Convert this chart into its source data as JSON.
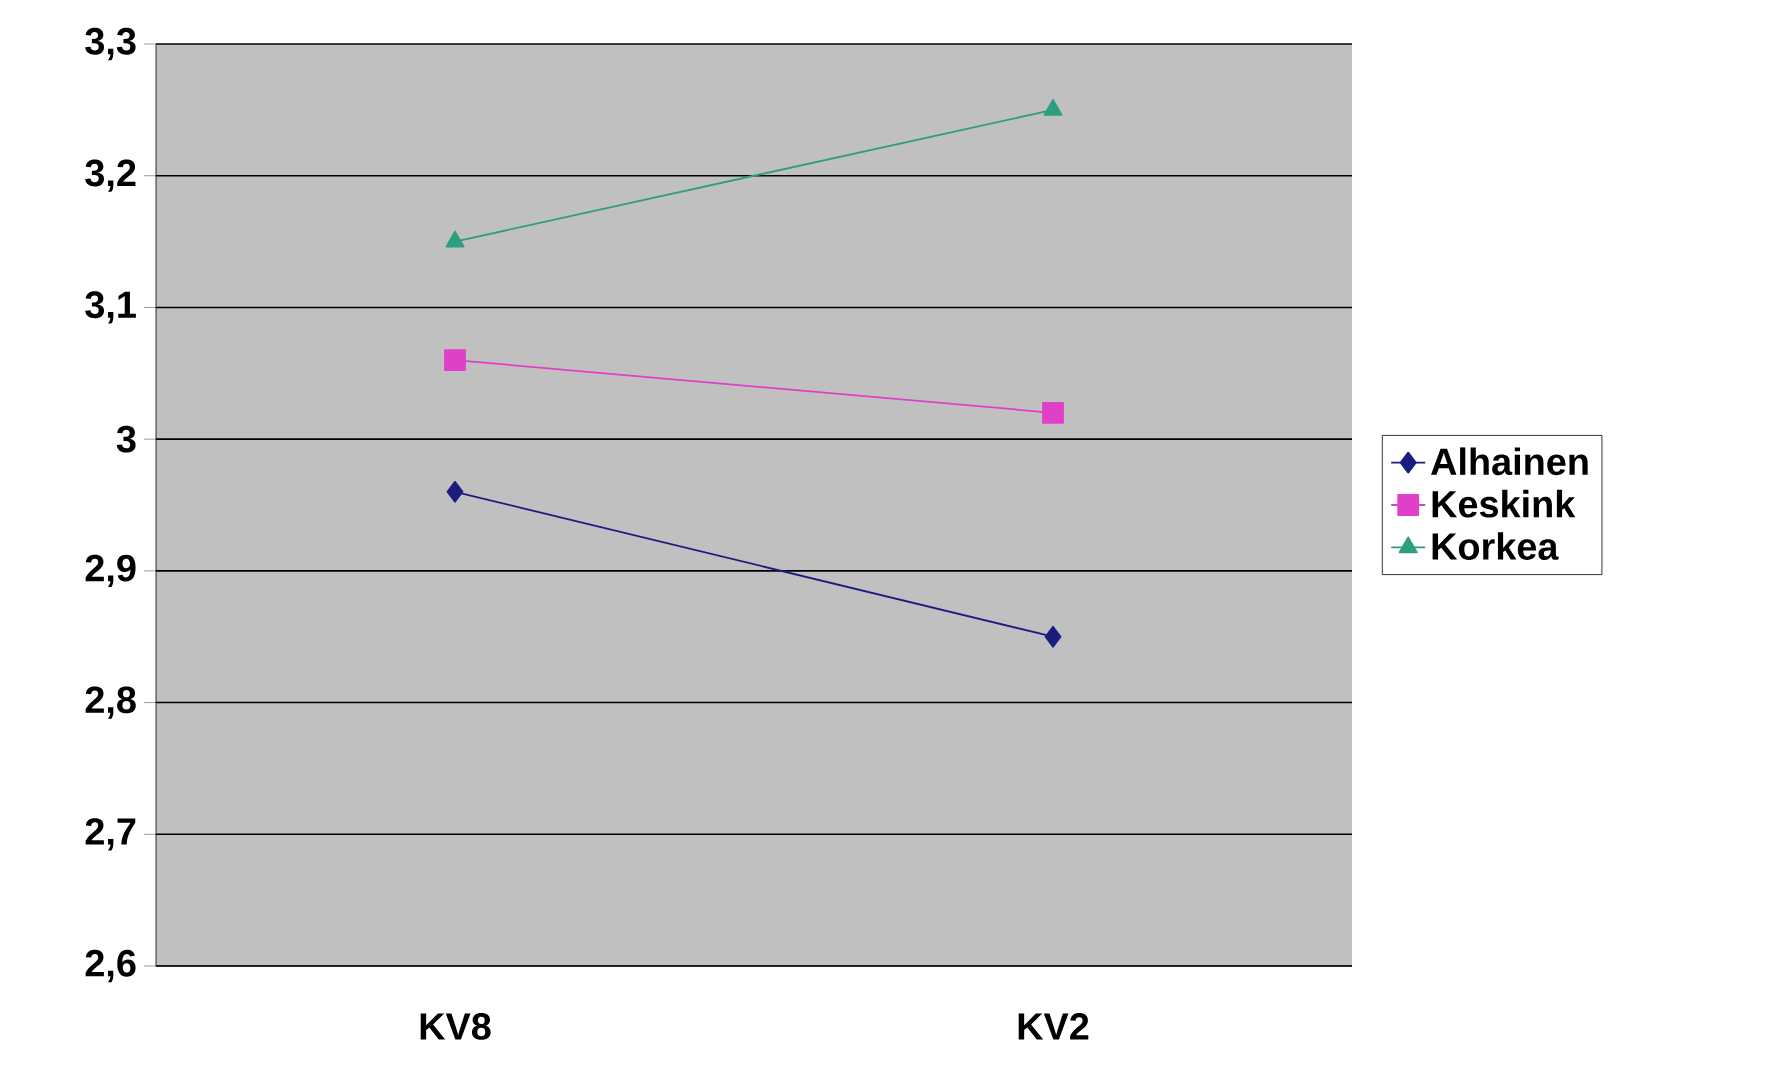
{
  "chart_data": {
    "type": "line",
    "categories": [
      "KV8",
      "KV2"
    ],
    "series": [
      {
        "name": "Alhainen",
        "color": "#1c1c80",
        "marker": "diamond",
        "values": [
          2.96,
          2.85
        ]
      },
      {
        "name": "Keskink",
        "color": "#e040c8",
        "marker": "square",
        "values": [
          3.06,
          3.02
        ]
      },
      {
        "name": "Korkea",
        "color": "#2e9e80",
        "marker": "triangle",
        "values": [
          3.15,
          3.25
        ]
      }
    ],
    "ylim": [
      2.6,
      3.3
    ],
    "yticks": [
      {
        "value": 2.6,
        "label": "2,6"
      },
      {
        "value": 2.7,
        "label": "2,7"
      },
      {
        "value": 2.8,
        "label": "2,8"
      },
      {
        "value": 2.9,
        "label": "2,9"
      },
      3,
      {
        "value": 3.1,
        "label": "3,1"
      },
      {
        "value": 3.2,
        "label": "3,2"
      },
      {
        "value": 3.3,
        "label": "3,3"
      }
    ],
    "grid": "y",
    "legend": "right",
    "line_style": "solid"
  }
}
